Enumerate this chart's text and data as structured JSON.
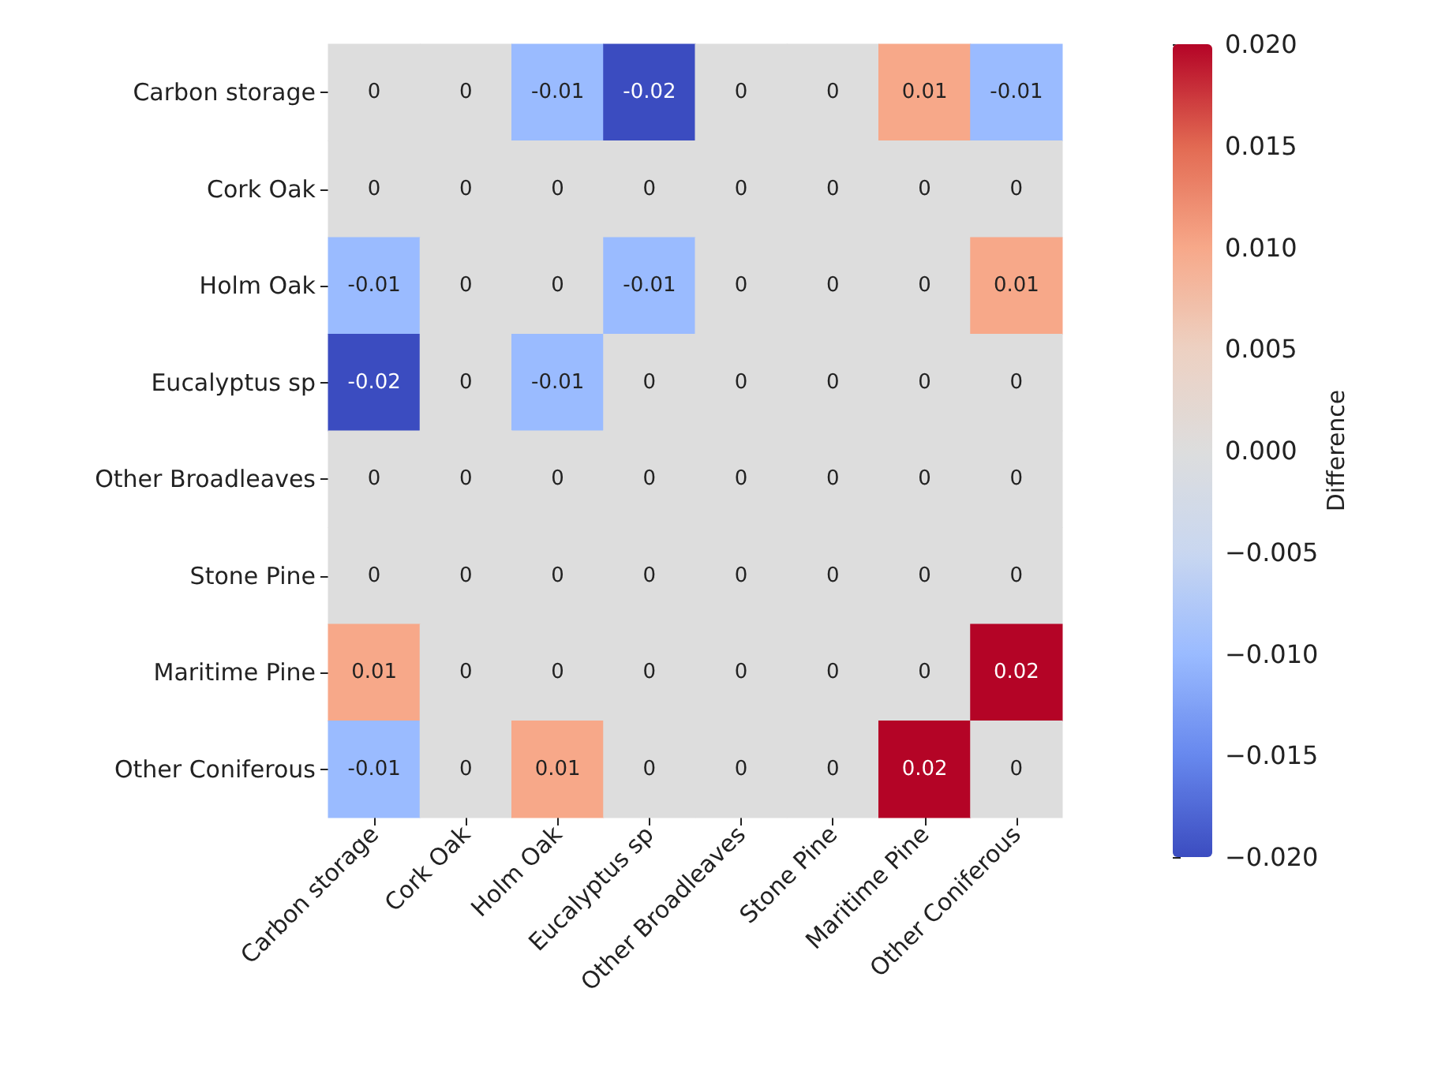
{
  "chart_data": {
    "type": "heatmap",
    "categories": [
      "Carbon storage",
      "Cork Oak",
      "Holm Oak",
      "Eucalyptus sp",
      "Other Broadleaves",
      "Stone Pine",
      "Maritime Pine",
      "Other Coniferous"
    ],
    "y_categories": [
      "Carbon storage",
      "Cork Oak",
      "Holm Oak",
      "Eucalyptus sp",
      "Other Broadleaves",
      "Stone Pine",
      "Maritime Pine",
      "Other Coniferous"
    ],
    "cells": [
      [
        0,
        0,
        -0.01,
        -0.02,
        0,
        0,
        0.01,
        -0.01
      ],
      [
        0,
        0,
        0,
        0,
        0,
        0,
        0,
        0
      ],
      [
        -0.01,
        0,
        0,
        -0.01,
        0,
        0,
        0,
        0.01
      ],
      [
        -0.02,
        0,
        -0.01,
        0,
        0,
        0,
        0,
        0
      ],
      [
        0,
        0,
        0,
        0,
        0,
        0,
        0,
        0
      ],
      [
        0,
        0,
        0,
        0,
        0,
        0,
        0,
        0
      ],
      [
        0.01,
        0,
        0,
        0,
        0,
        0,
        0,
        0.02
      ],
      [
        -0.01,
        0,
        0.01,
        0,
        0,
        0,
        0.02,
        0
      ]
    ],
    "data_labels": true,
    "clabel": "Difference",
    "clim": [
      -0.02,
      0.02
    ],
    "cticks": [
      {
        "value": -0.02,
        "label": "−0.020"
      },
      {
        "value": -0.015,
        "label": "−0.015"
      },
      {
        "value": -0.01,
        "label": "−0.010"
      },
      {
        "value": -0.005,
        "label": "−0.005"
      },
      {
        "value": 0,
        "label": "0.000"
      },
      {
        "value": 0.005,
        "label": "0.005"
      },
      {
        "value": 0.01,
        "label": "0.010"
      },
      {
        "value": 0.015,
        "label": "0.015"
      },
      {
        "value": 0.02,
        "label": "0.020"
      }
    ]
  }
}
